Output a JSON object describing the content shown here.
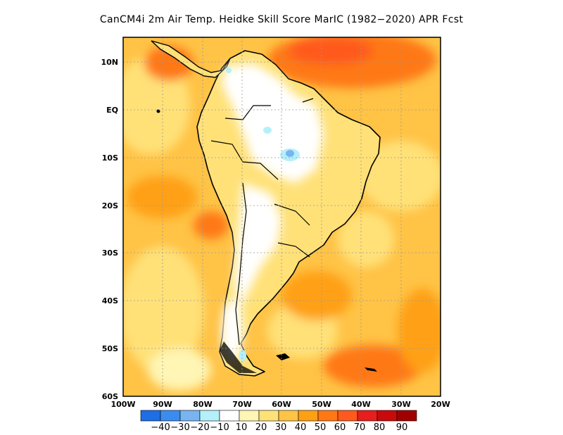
{
  "title": "CanCM4i  2m Air Temp. Heidke Skill Score MarIC (1982−2020) APR Fcst",
  "map": {
    "lon_labels": [
      "100W",
      "90W",
      "80W",
      "70W",
      "60W",
      "50W",
      "40W",
      "30W",
      "20W"
    ],
    "lat_labels": [
      "10N",
      "EQ",
      "10S",
      "20S",
      "30S",
      "40S",
      "50S",
      "60S"
    ],
    "lon_range": [
      -100,
      -20
    ],
    "lat_range": [
      -60,
      15
    ],
    "grid": true
  },
  "colorbar": {
    "labels": [
      "−40",
      "−30",
      "−20",
      "−10",
      "10",
      "20",
      "30",
      "40",
      "50",
      "60",
      "70",
      "80",
      "90"
    ],
    "colors": [
      "#1e6ee6",
      "#3c8cf0",
      "#78b4f0",
      "#b4f0fa",
      "#ffffff",
      "#fff5b4",
      "#ffe178",
      "#ffc346",
      "#ffa014",
      "#ff7814",
      "#ff5a1e",
      "#e61e1e",
      "#c80a0a",
      "#a00000"
    ]
  }
}
